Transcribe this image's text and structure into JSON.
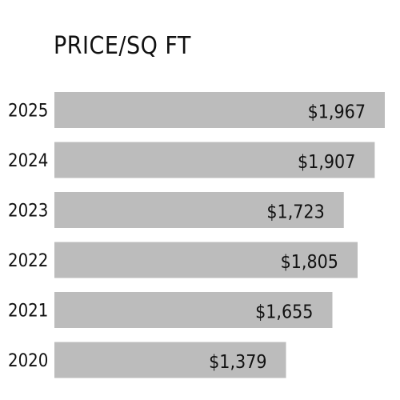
{
  "chart_data": {
    "type": "bar",
    "orientation": "horizontal",
    "title": "PRICE/SQ FT",
    "xlabel": "",
    "ylabel": "",
    "categories": [
      "2025",
      "2024",
      "2023",
      "2022",
      "2021",
      "2020"
    ],
    "values": [
      1967,
      1907,
      1723,
      1805,
      1655,
      1379
    ],
    "value_labels": [
      "$1,967",
      "$1,907",
      "$1,723",
      "$1,805",
      "$1,655",
      "$1,379"
    ],
    "xlim": [
      0,
      1967
    ],
    "grid": false,
    "legend": "none",
    "bar_color": "#bcbcbc"
  }
}
